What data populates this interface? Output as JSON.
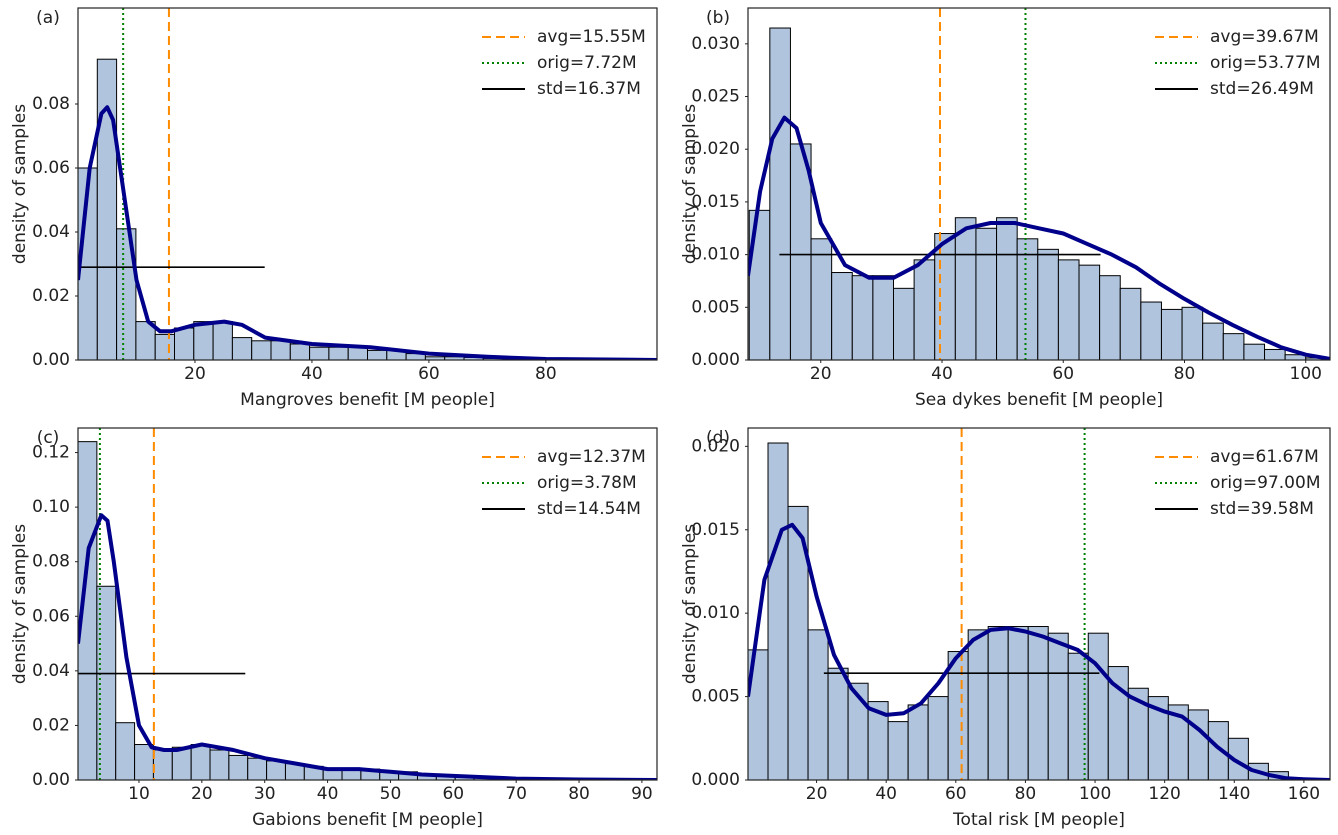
{
  "chart_data": [
    {
      "type": "histogram",
      "panel": "(a)",
      "xlabel": "Mangroves benefit [M people]",
      "ylabel": "density of samples",
      "color": "#b0c4de",
      "bins": [
        0,
        3.3,
        6.6,
        9.9,
        13.2,
        16.5,
        19.8,
        23.1,
        26.4,
        29.7,
        33,
        36.3,
        39.6,
        42.9,
        46.2,
        49.5,
        52.8,
        56.1,
        59.4,
        62.7,
        66,
        69.3,
        72.6,
        75.9,
        79.2,
        82.5,
        85.8,
        89.1,
        92.4,
        95.7,
        99
      ],
      "counts": [
        0.06,
        0.094,
        0.041,
        0.012,
        0.008,
        0.01,
        0.012,
        0.012,
        0.007,
        0.006,
        0.006,
        0.005,
        0.004,
        0.004,
        0.004,
        0.003,
        0.003,
        0.002,
        0.001,
        0.001,
        0.0008,
        0.0005,
        0.0004,
        0.0003,
        0.0002,
        0.0002,
        0.0001,
        0.0001,
        0.0001,
        0.0001
      ],
      "kde": {
        "color": "#00008b",
        "x": [
          0,
          2,
          4,
          5,
          6,
          8,
          10,
          12,
          14,
          16,
          20,
          25,
          28,
          32,
          40,
          50,
          60,
          70,
          80,
          99
        ],
        "values": [
          0.025,
          0.06,
          0.077,
          0.079,
          0.075,
          0.05,
          0.025,
          0.012,
          0.009,
          0.009,
          0.011,
          0.012,
          0.011,
          0.007,
          0.005,
          0.004,
          0.002,
          0.001,
          0.0003,
          0
        ]
      },
      "lines": [
        {
          "name": "avg=15.55M",
          "value": 15.55,
          "style": "dashed",
          "color": "#ff8c00"
        },
        {
          "name": "orig=7.72M",
          "value": 7.72,
          "style": "dotted",
          "color": "#008000"
        },
        {
          "name": "std=16.37M",
          "value": 16.37,
          "y": 0.029,
          "style": "solid",
          "color": "#000000"
        }
      ],
      "xlim": [
        0,
        99
      ],
      "ylim": [
        0,
        0.11
      ],
      "xticks": [
        20,
        40,
        60,
        80
      ],
      "yticks": [
        {
          "value": 0,
          "label": "0.00"
        },
        {
          "value": 0.02,
          "label": "0.02"
        },
        {
          "value": 0.04,
          "label": "0.04"
        },
        {
          "value": 0.06,
          "label": "0.06"
        },
        {
          "value": 0.08,
          "label": "0.08"
        }
      ]
    },
    {
      "type": "histogram",
      "panel": "(b)",
      "xlabel": "Sea dykes benefit [M people]",
      "ylabel": "density of samples",
      "color": "#b0c4de",
      "bins": [
        8.2,
        11.6,
        15,
        18.4,
        21.8,
        25.2,
        28.6,
        32,
        35.4,
        38.8,
        42.2,
        45.6,
        49,
        52.4,
        55.8,
        59.2,
        62.6,
        66,
        69.4,
        72.8,
        76.2,
        79.6,
        83,
        86.4,
        89.8,
        93.2,
        96.6,
        100,
        103.4
      ],
      "counts": [
        0.0142,
        0.0315,
        0.0205,
        0.0115,
        0.0083,
        0.008,
        0.008,
        0.0068,
        0.0095,
        0.012,
        0.0135,
        0.0125,
        0.0135,
        0.0115,
        0.0105,
        0.0095,
        0.009,
        0.008,
        0.0068,
        0.0055,
        0.0048,
        0.005,
        0.0035,
        0.0025,
        0.0015,
        0.001,
        0.0005,
        0.0002
      ],
      "kde": {
        "color": "#00008b",
        "x": [
          8,
          10,
          12,
          14,
          16,
          18,
          20,
          24,
          28,
          32,
          36,
          40,
          44,
          48,
          52,
          56,
          60,
          64,
          68,
          72,
          76,
          80,
          84,
          88,
          92,
          96,
          100,
          104
        ],
        "values": [
          0.008,
          0.016,
          0.021,
          0.023,
          0.022,
          0.018,
          0.013,
          0.009,
          0.0078,
          0.0078,
          0.009,
          0.011,
          0.0125,
          0.013,
          0.013,
          0.0125,
          0.012,
          0.011,
          0.01,
          0.0088,
          0.0072,
          0.0058,
          0.0045,
          0.0033,
          0.0022,
          0.0012,
          0.0005,
          0.0001
        ]
      },
      "lines": [
        {
          "name": "avg=39.67M",
          "value": 39.67,
          "style": "dashed",
          "color": "#ff8c00"
        },
        {
          "name": "orig=53.77M",
          "value": 53.77,
          "style": "dotted",
          "color": "#008000"
        },
        {
          "name": "std=26.49M",
          "value": 26.49,
          "y": 0.01,
          "style": "solid",
          "color": "#000000"
        }
      ],
      "xlim": [
        8,
        104
      ],
      "ylim": [
        0,
        0.0334
      ],
      "xticks": [
        20,
        40,
        60,
        80,
        100
      ],
      "yticks": [
        {
          "value": 0,
          "label": "0.000"
        },
        {
          "value": 0.005,
          "label": "0.005"
        },
        {
          "value": 0.01,
          "label": "0.010"
        },
        {
          "value": 0.015,
          "label": "0.015"
        },
        {
          "value": 0.02,
          "label": "0.020"
        },
        {
          "value": 0.025,
          "label": "0.025"
        },
        {
          "value": 0.03,
          "label": "0.030"
        }
      ]
    },
    {
      "type": "histogram",
      "panel": "(c)",
      "xlabel": "Gabions benefit [M people]",
      "ylabel": "density of samples",
      "color": "#b0c4de",
      "bins": [
        0.3,
        3.3,
        6.3,
        9.3,
        12.3,
        15.3,
        18.3,
        21.3,
        24.3,
        27.3,
        30.3,
        33.3,
        36.3,
        39.3,
        42.3,
        45.3,
        48.3,
        51.3,
        54.3,
        57.3,
        60.3,
        63.3,
        66.3,
        69.3,
        72.3,
        75.3,
        78.3,
        81.3,
        84.3,
        87.3
      ],
      "counts": [
        0.124,
        0.071,
        0.021,
        0.013,
        0.011,
        0.012,
        0.013,
        0.011,
        0.009,
        0.008,
        0.007,
        0.006,
        0.005,
        0.004,
        0.004,
        0.004,
        0.003,
        0.003,
        0.002,
        0.002,
        0.0015,
        0.001,
        0.001,
        0.0005,
        0.0004,
        0.0003,
        0.0002,
        0.0001,
        0.0001
      ],
      "kde": {
        "color": "#00008b",
        "x": [
          0.3,
          2,
          4,
          5,
          6,
          8,
          10,
          12,
          14,
          16,
          20,
          25,
          30,
          35,
          40,
          45,
          50,
          55,
          60,
          70,
          80,
          92.4
        ],
        "values": [
          0.05,
          0.085,
          0.097,
          0.095,
          0.08,
          0.045,
          0.02,
          0.012,
          0.011,
          0.011,
          0.013,
          0.011,
          0.008,
          0.006,
          0.004,
          0.004,
          0.003,
          0.002,
          0.0015,
          0.0005,
          0.0002,
          0
        ]
      },
      "lines": [
        {
          "name": "avg=12.37M",
          "value": 12.37,
          "style": "dashed",
          "color": "#ff8c00"
        },
        {
          "name": "orig=3.78M",
          "value": 3.78,
          "style": "dotted",
          "color": "#008000"
        },
        {
          "name": "std=14.54M",
          "value": 14.54,
          "y": 0.039,
          "style": "solid",
          "color": "#000000"
        }
      ],
      "xlim": [
        0.3,
        92.4
      ],
      "ylim": [
        0,
        0.129
      ],
      "xticks": [
        10,
        20,
        30,
        40,
        50,
        60,
        70,
        80,
        90
      ],
      "yticks": [
        {
          "value": 0,
          "label": "0.00"
        },
        {
          "value": 0.02,
          "label": "0.02"
        },
        {
          "value": 0.04,
          "label": "0.04"
        },
        {
          "value": 0.06,
          "label": "0.06"
        },
        {
          "value": 0.08,
          "label": "0.08"
        },
        {
          "value": 0.1,
          "label": "0.10"
        },
        {
          "value": 0.12,
          "label": "0.12"
        }
      ]
    },
    {
      "type": "histogram",
      "panel": "(d)",
      "xlabel": "Total risk [M people]",
      "ylabel": "density of samples",
      "color": "#b0c4de",
      "bins": [
        0.3,
        6.05,
        11.8,
        17.55,
        23.3,
        29.05,
        34.8,
        40.55,
        46.3,
        52.05,
        57.8,
        63.55,
        69.3,
        75.05,
        80.8,
        86.55,
        92.3,
        98.05,
        103.8,
        109.55,
        115.3,
        121.05,
        126.8,
        132.55,
        138.3,
        144.05,
        149.8,
        155.55
      ],
      "counts": [
        0.0078,
        0.0202,
        0.0164,
        0.009,
        0.0067,
        0.0058,
        0.0047,
        0.0035,
        0.0045,
        0.005,
        0.0077,
        0.009,
        0.0092,
        0.0092,
        0.0092,
        0.0088,
        0.0076,
        0.0088,
        0.0068,
        0.0055,
        0.005,
        0.0045,
        0.0042,
        0.0035,
        0.0025,
        0.001,
        0.0005
      ],
      "kde": {
        "color": "#00008b",
        "x": [
          0.3,
          5,
          10,
          13,
          16,
          20,
          25,
          30,
          35,
          40,
          45,
          50,
          55,
          60,
          65,
          70,
          75,
          80,
          85,
          90,
          95,
          100,
          105,
          110,
          115,
          120,
          125,
          130,
          135,
          140,
          145,
          150,
          155,
          160,
          167.5
        ],
        "values": [
          0.005,
          0.012,
          0.015,
          0.0153,
          0.0145,
          0.011,
          0.0075,
          0.0055,
          0.0043,
          0.0039,
          0.004,
          0.0046,
          0.0058,
          0.0073,
          0.0084,
          0.009,
          0.0091,
          0.0089,
          0.0086,
          0.0082,
          0.0078,
          0.007,
          0.0058,
          0.005,
          0.0045,
          0.0041,
          0.0038,
          0.003,
          0.002,
          0.0012,
          0.0006,
          0.0003,
          0.0001,
          5e-05,
          0
        ]
      },
      "lines": [
        {
          "name": "avg=61.67M",
          "value": 61.67,
          "style": "dashed",
          "color": "#ff8c00"
        },
        {
          "name": "orig=97.00M",
          "value": 97.0,
          "style": "dotted",
          "color": "#008000"
        },
        {
          "name": "std=39.58M",
          "value": 39.58,
          "y": 0.0064,
          "style": "solid",
          "color": "#000000"
        }
      ],
      "xlim": [
        0.3,
        167.5
      ],
      "ylim": [
        0,
        0.0211
      ],
      "xticks": [
        20,
        40,
        60,
        80,
        100,
        120,
        140,
        160
      ],
      "yticks": [
        {
          "value": 0,
          "label": "0.000"
        },
        {
          "value": 0.005,
          "label": "0.005"
        },
        {
          "value": 0.01,
          "label": "0.010"
        },
        {
          "value": 0.015,
          "label": "0.015"
        },
        {
          "value": 0.02,
          "label": "0.020"
        }
      ]
    }
  ]
}
